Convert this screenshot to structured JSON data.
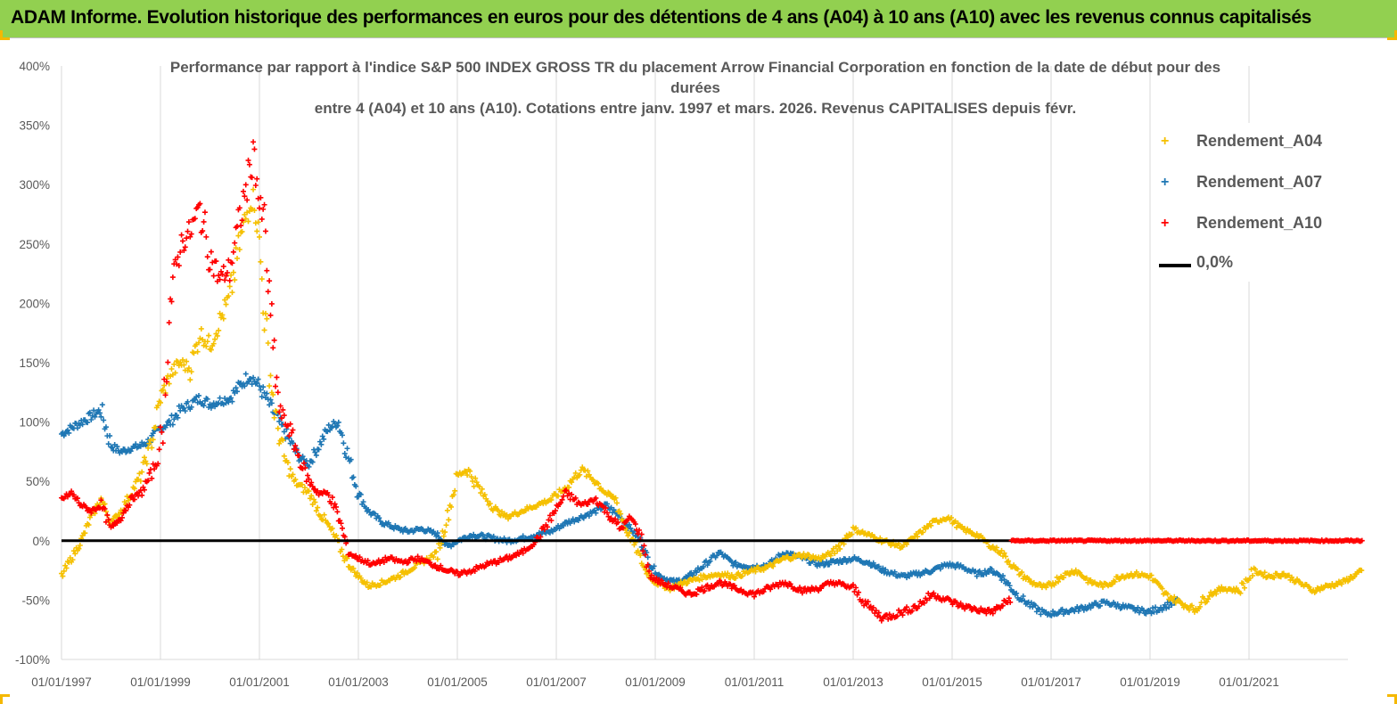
{
  "banner": {
    "title": "ADAM Informe. Evolution historique des performances en euros pour des détentions de 4 ans (A04) à 10 ans (A10) avec les revenus connus capitalisés",
    "bg_color": "#92d050"
  },
  "chart_data": {
    "type": "scatter",
    "title": [
      "Performance par rapport à l'indice S&P 500 INDEX GROSS TR  du placement Arrow Financial Corporation en fonction de la date de début pour des",
      "durées",
      "entre 4 (A04) et 10 ans (A10). Cotations entre janv. 1997 et mars. 2026. Revenus CAPITALISES depuis févr."
    ],
    "xlabel": "",
    "ylabel": "",
    "xlim": [
      1997.0,
      2023.0
    ],
    "ylim": [
      -100,
      400
    ],
    "y_ticks": [
      400,
      350,
      300,
      250,
      200,
      150,
      100,
      50,
      0,
      -50,
      -100
    ],
    "y_tick_labels": [
      "400%",
      "350%",
      "300%",
      "250%",
      "200%",
      "150%",
      "100%",
      "50%",
      "0%",
      "-50%",
      "-100%"
    ],
    "x_ticks": [
      1997,
      1999,
      2001,
      2003,
      2005,
      2007,
      2009,
      2011,
      2013,
      2015,
      2017,
      2019,
      2021
    ],
    "x_tick_labels": [
      "01/01/1997",
      "01/01/1999",
      "01/01/2001",
      "01/01/2003",
      "01/01/2005",
      "01/01/2007",
      "01/01/2009",
      "01/01/2011",
      "01/01/2013",
      "01/01/2015",
      "01/01/2017",
      "01/01/2019",
      "01/01/2021"
    ],
    "grid": "vertical",
    "legend_position": "top-right",
    "reference_line": {
      "name": "0,0%",
      "value": 0,
      "color": "#000000"
    },
    "series": [
      {
        "name": "Rendement_A04",
        "color": "#f5c000",
        "points": [
          [
            1997.0,
            -30
          ],
          [
            1997.2,
            -15
          ],
          [
            1997.4,
            0
          ],
          [
            1997.6,
            20
          ],
          [
            1997.8,
            35
          ],
          [
            1998.0,
            15
          ],
          [
            1998.2,
            25
          ],
          [
            1998.4,
            40
          ],
          [
            1998.6,
            55
          ],
          [
            1998.8,
            80
          ],
          [
            1999.0,
            120
          ],
          [
            1999.2,
            140
          ],
          [
            1999.4,
            150
          ],
          [
            1999.6,
            145
          ],
          [
            1999.8,
            175
          ],
          [
            2000.0,
            165
          ],
          [
            2000.2,
            185
          ],
          [
            2000.4,
            205
          ],
          [
            2000.6,
            250
          ],
          [
            2000.8,
            285
          ],
          [
            2000.9,
            290
          ],
          [
            2001.0,
            250
          ],
          [
            2001.1,
            190
          ],
          [
            2001.3,
            110
          ],
          [
            2001.5,
            70
          ],
          [
            2001.7,
            50
          ],
          [
            2002.0,
            40
          ],
          [
            2002.2,
            25
          ],
          [
            2002.5,
            5
          ],
          [
            2002.8,
            -20
          ],
          [
            2003.0,
            -30
          ],
          [
            2003.2,
            -38
          ],
          [
            2003.5,
            -35
          ],
          [
            2003.8,
            -30
          ],
          [
            2004.0,
            -25
          ],
          [
            2004.3,
            -18
          ],
          [
            2004.6,
            -10
          ],
          [
            2004.8,
            20
          ],
          [
            2005.0,
            55
          ],
          [
            2005.2,
            60
          ],
          [
            2005.5,
            40
          ],
          [
            2005.8,
            25
          ],
          [
            2006.0,
            20
          ],
          [
            2006.3,
            25
          ],
          [
            2006.6,
            30
          ],
          [
            2006.9,
            35
          ],
          [
            2007.2,
            45
          ],
          [
            2007.5,
            60
          ],
          [
            2007.8,
            50
          ],
          [
            2008.0,
            40
          ],
          [
            2008.2,
            35
          ],
          [
            2008.4,
            10
          ],
          [
            2008.6,
            -5
          ],
          [
            2008.8,
            -25
          ],
          [
            2009.0,
            -35
          ],
          [
            2009.3,
            -40
          ],
          [
            2009.6,
            -35
          ],
          [
            2010.0,
            -30
          ],
          [
            2010.3,
            -28
          ],
          [
            2010.6,
            -30
          ],
          [
            2011.0,
            -25
          ],
          [
            2011.3,
            -22
          ],
          [
            2011.6,
            -15
          ],
          [
            2012.0,
            -12
          ],
          [
            2012.3,
            -15
          ],
          [
            2012.6,
            -10
          ],
          [
            2013.0,
            10
          ],
          [
            2013.3,
            5
          ],
          [
            2013.6,
            0
          ],
          [
            2014.0,
            -5
          ],
          [
            2014.3,
            5
          ],
          [
            2014.6,
            15
          ],
          [
            2014.9,
            20
          ],
          [
            2015.2,
            10
          ],
          [
            2015.5,
            5
          ],
          [
            2015.8,
            -5
          ],
          [
            2016.0,
            -10
          ],
          [
            2016.3,
            -25
          ],
          [
            2016.6,
            -35
          ],
          [
            2016.9,
            -40
          ],
          [
            2017.2,
            -30
          ],
          [
            2017.5,
            -25
          ],
          [
            2017.8,
            -35
          ],
          [
            2018.1,
            -38
          ],
          [
            2018.4,
            -30
          ],
          [
            2018.7,
            -28
          ],
          [
            2019.0,
            -30
          ],
          [
            2019.3,
            -45
          ],
          [
            2019.6,
            -52
          ],
          [
            2019.9,
            -58
          ],
          [
            2020.2,
            -45
          ],
          [
            2020.5,
            -40
          ],
          [
            2020.8,
            -42
          ],
          [
            2021.1,
            -25
          ],
          [
            2021.4,
            -30
          ],
          [
            2021.7,
            -28
          ],
          [
            2022.0,
            -35
          ],
          [
            2022.3,
            -42
          ],
          [
            2022.6,
            -38
          ],
          [
            2022.9,
            -35
          ],
          [
            2023.1,
            -30
          ],
          [
            2023.3,
            -25
          ]
        ]
      },
      {
        "name": "Rendement_A07",
        "color": "#1f77b4",
        "points": [
          [
            1997.0,
            90
          ],
          [
            1997.2,
            95
          ],
          [
            1997.4,
            100
          ],
          [
            1997.6,
            105
          ],
          [
            1997.8,
            110
          ],
          [
            1998.0,
            80
          ],
          [
            1998.2,
            75
          ],
          [
            1998.4,
            78
          ],
          [
            1998.6,
            80
          ],
          [
            1998.8,
            85
          ],
          [
            1999.0,
            95
          ],
          [
            1999.2,
            100
          ],
          [
            1999.4,
            110
          ],
          [
            1999.6,
            115
          ],
          [
            1999.8,
            120
          ],
          [
            2000.0,
            115
          ],
          [
            2000.2,
            118
          ],
          [
            2000.4,
            120
          ],
          [
            2000.6,
            130
          ],
          [
            2000.8,
            140
          ],
          [
            2001.0,
            130
          ],
          [
            2001.2,
            115
          ],
          [
            2001.4,
            100
          ],
          [
            2001.6,
            85
          ],
          [
            2001.8,
            70
          ],
          [
            2002.0,
            65
          ],
          [
            2002.2,
            80
          ],
          [
            2002.4,
            95
          ],
          [
            2002.6,
            100
          ],
          [
            2002.8,
            70
          ],
          [
            2003.0,
            40
          ],
          [
            2003.2,
            25
          ],
          [
            2003.5,
            15
          ],
          [
            2003.8,
            10
          ],
          [
            2004.0,
            8
          ],
          [
            2004.3,
            10
          ],
          [
            2004.6,
            5
          ],
          [
            2004.8,
            -5
          ],
          [
            2005.0,
            0
          ],
          [
            2005.3,
            5
          ],
          [
            2005.6,
            3
          ],
          [
            2006.0,
            0
          ],
          [
            2006.3,
            2
          ],
          [
            2006.6,
            5
          ],
          [
            2006.9,
            8
          ],
          [
            2007.2,
            15
          ],
          [
            2007.5,
            20
          ],
          [
            2007.8,
            25
          ],
          [
            2008.0,
            30
          ],
          [
            2008.3,
            20
          ],
          [
            2008.5,
            10
          ],
          [
            2008.7,
            0
          ],
          [
            2008.9,
            -20
          ],
          [
            2009.1,
            -30
          ],
          [
            2009.4,
            -35
          ],
          [
            2009.7,
            -30
          ],
          [
            2010.0,
            -20
          ],
          [
            2010.3,
            -10
          ],
          [
            2010.6,
            -20
          ],
          [
            2011.0,
            -22
          ],
          [
            2011.3,
            -20
          ],
          [
            2011.6,
            -10
          ],
          [
            2012.0,
            -15
          ],
          [
            2012.3,
            -20
          ],
          [
            2012.6,
            -18
          ],
          [
            2013.0,
            -15
          ],
          [
            2013.3,
            -18
          ],
          [
            2013.6,
            -25
          ],
          [
            2014.0,
            -30
          ],
          [
            2014.3,
            -28
          ],
          [
            2014.6,
            -25
          ],
          [
            2014.9,
            -20
          ],
          [
            2015.2,
            -22
          ],
          [
            2015.5,
            -28
          ],
          [
            2015.8,
            -25
          ],
          [
            2016.0,
            -30
          ],
          [
            2016.3,
            -45
          ],
          [
            2016.6,
            -55
          ],
          [
            2016.9,
            -62
          ],
          [
            2017.2,
            -60
          ],
          [
            2017.5,
            -58
          ],
          [
            2017.8,
            -55
          ],
          [
            2018.1,
            -52
          ],
          [
            2018.4,
            -55
          ],
          [
            2018.7,
            -58
          ],
          [
            2019.0,
            -60
          ],
          [
            2019.3,
            -55
          ],
          [
            2019.6,
            -50
          ]
        ]
      },
      {
        "name": "Rendement_A10",
        "color": "#ff0000",
        "points": [
          [
            1997.0,
            35
          ],
          [
            1997.2,
            40
          ],
          [
            1997.4,
            30
          ],
          [
            1997.6,
            25
          ],
          [
            1997.8,
            30
          ],
          [
            1998.0,
            10
          ],
          [
            1998.2,
            20
          ],
          [
            1998.4,
            35
          ],
          [
            1998.6,
            40
          ],
          [
            1998.8,
            55
          ],
          [
            1999.0,
            75
          ],
          [
            1999.2,
            200
          ],
          [
            1999.4,
            250
          ],
          [
            1999.6,
            260
          ],
          [
            1999.8,
            280
          ],
          [
            2000.0,
            240
          ],
          [
            2000.2,
            220
          ],
          [
            2000.4,
            230
          ],
          [
            2000.6,
            270
          ],
          [
            2000.8,
            310
          ],
          [
            2000.9,
            330
          ],
          [
            2001.0,
            280
          ],
          [
            2001.1,
            270
          ],
          [
            2001.2,
            200
          ],
          [
            2001.4,
            110
          ],
          [
            2001.6,
            95
          ],
          [
            2001.8,
            70
          ],
          [
            2002.0,
            50
          ],
          [
            2002.2,
            40
          ],
          [
            2002.4,
            40
          ],
          [
            2002.6,
            20
          ],
          [
            2002.8,
            -10
          ],
          [
            2003.0,
            -15
          ],
          [
            2003.3,
            -20
          ],
          [
            2003.6,
            -15
          ],
          [
            2003.9,
            -18
          ],
          [
            2004.2,
            -15
          ],
          [
            2004.5,
            -20
          ],
          [
            2004.8,
            -25
          ],
          [
            2005.0,
            -28
          ],
          [
            2005.3,
            -25
          ],
          [
            2005.6,
            -20
          ],
          [
            2006.0,
            -15
          ],
          [
            2006.3,
            -10
          ],
          [
            2006.6,
            0
          ],
          [
            2006.9,
            20
          ],
          [
            2007.2,
            40
          ],
          [
            2007.5,
            30
          ],
          [
            2007.8,
            35
          ],
          [
            2008.0,
            25
          ],
          [
            2008.3,
            10
          ],
          [
            2008.5,
            20
          ],
          [
            2008.7,
            5
          ],
          [
            2008.9,
            -30
          ],
          [
            2009.1,
            -35
          ],
          [
            2009.4,
            -40
          ],
          [
            2009.7,
            -45
          ],
          [
            2010.0,
            -40
          ],
          [
            2010.3,
            -35
          ],
          [
            2010.6,
            -40
          ],
          [
            2011.0,
            -45
          ],
          [
            2011.3,
            -40
          ],
          [
            2011.6,
            -35
          ],
          [
            2012.0,
            -42
          ],
          [
            2012.3,
            -40
          ],
          [
            2012.6,
            -35
          ],
          [
            2013.0,
            -40
          ],
          [
            2013.3,
            -55
          ],
          [
            2013.6,
            -65
          ],
          [
            2014.0,
            -60
          ],
          [
            2014.3,
            -55
          ],
          [
            2014.6,
            -45
          ],
          [
            2014.9,
            -50
          ],
          [
            2015.2,
            -55
          ],
          [
            2015.5,
            -58
          ],
          [
            2015.8,
            -60
          ],
          [
            2016.0,
            -55
          ],
          [
            2016.2,
            -48
          ]
        ],
        "flat_segment": {
          "from": 2016.2,
          "to": 2023.3,
          "value": 0
        }
      }
    ]
  }
}
